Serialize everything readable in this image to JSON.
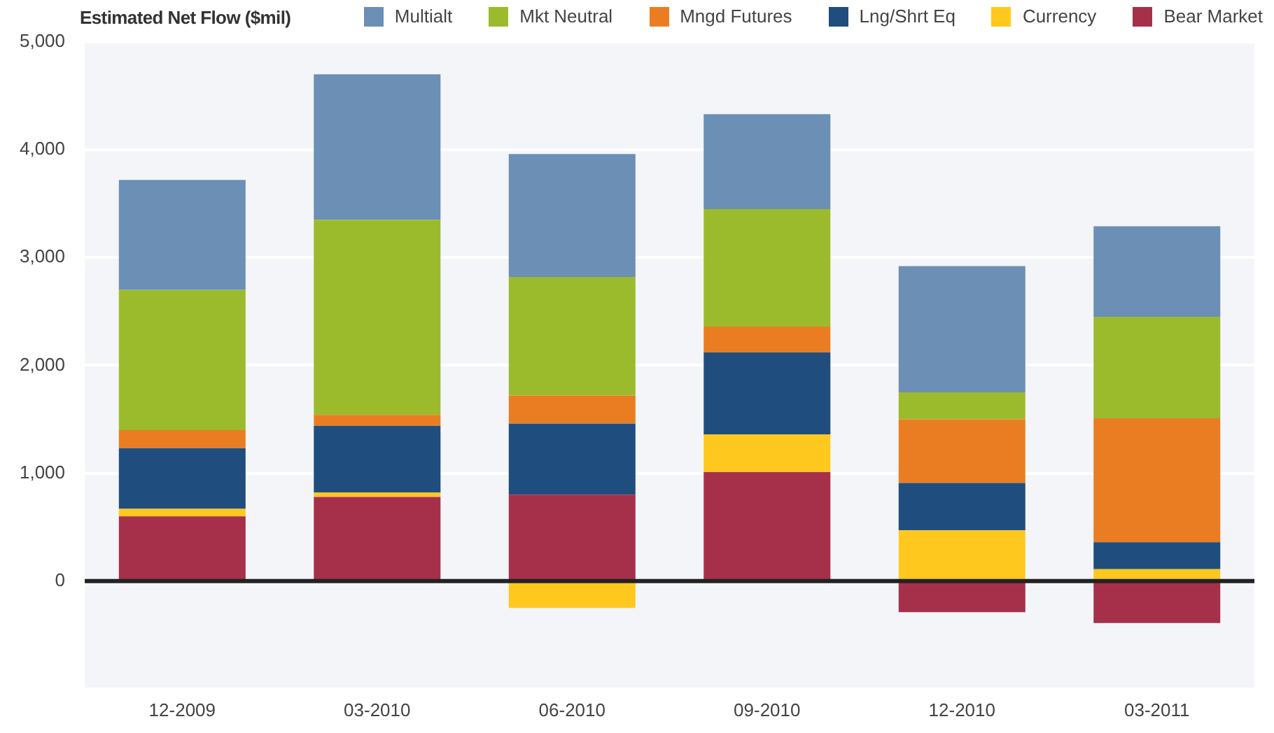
{
  "chart_data": {
    "type": "bar",
    "title": "Estimated Net Flow ($mil)",
    "stacked": true,
    "legend": "top right",
    "grid": "y",
    "categories": [
      "12-2009",
      "03-2010",
      "06-2010",
      "09-2010",
      "12-2010",
      "03-2011"
    ],
    "ylim": [
      -1000,
      5000
    ],
    "yticks": [
      {
        "value": -1000,
        "label": null
      },
      0,
      {
        "value": 1000,
        "label": "1,000"
      },
      {
        "value": 2000,
        "label": "2,000"
      },
      {
        "value": 3000,
        "label": "3,000"
      },
      {
        "value": 4000,
        "label": "4,000"
      },
      {
        "value": 5000,
        "label": "5,000"
      }
    ],
    "ref_lines": [
      {
        "axis": "y",
        "value": 0,
        "color": "#222222"
      }
    ],
    "series": [
      {
        "name": "Bear Market",
        "color": "#a6304a",
        "values": [
          600,
          780,
          800,
          1010,
          -290,
          -390
        ]
      },
      {
        "name": "Currency",
        "color": "#ffc81e",
        "values": [
          70,
          40,
          -250,
          350,
          470,
          110
        ]
      },
      {
        "name": "Lng/Shrt Eq",
        "color": "#1f4e7e",
        "values": [
          560,
          620,
          660,
          760,
          440,
          250
        ]
      },
      {
        "name": "Mngd Futures",
        "color": "#ea7d22",
        "values": [
          170,
          100,
          260,
          240,
          590,
          1150
        ]
      },
      {
        "name": "Mkt Neutral",
        "color": "#9cbb2c",
        "values": [
          1300,
          1810,
          1100,
          1090,
          250,
          940
        ]
      },
      {
        "name": "Multialt",
        "color": "#6b8fb5",
        "values": [
          1020,
          1350,
          1140,
          880,
          1170,
          840
        ]
      }
    ]
  }
}
